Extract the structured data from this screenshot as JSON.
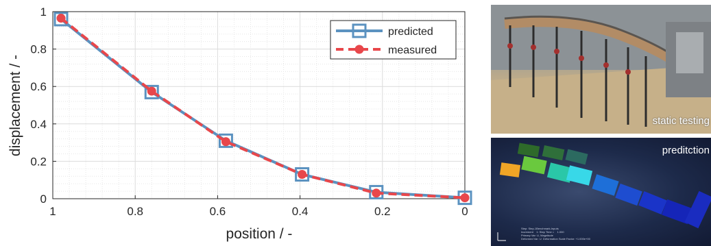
{
  "chart_data": {
    "type": "line",
    "xlabel": "position / -",
    "ylabel": "displacement / -",
    "xlim": [
      1,
      0
    ],
    "ylim": [
      0,
      1
    ],
    "x_reversed": true,
    "xticks": [
      "1",
      "0.8",
      "0.6",
      "0.4",
      "0.2",
      "0"
    ],
    "yticks": [
      "0",
      "0.2",
      "0.4",
      "0.6",
      "0.8",
      "1"
    ],
    "grid": true,
    "minor_grid": true,
    "legend_position": "top-right",
    "series": [
      {
        "name": "predicted",
        "color": "#5b92c0",
        "style": "solid",
        "marker": "square",
        "x": [
          0.98,
          0.76,
          0.58,
          0.395,
          0.215,
          0.0
        ],
        "y": [
          0.96,
          0.57,
          0.31,
          0.13,
          0.035,
          0.005
        ]
      },
      {
        "name": "measured",
        "color": "#e8474b",
        "style": "dashed",
        "marker": "circle",
        "x": [
          0.98,
          0.76,
          0.58,
          0.395,
          0.215,
          0.0
        ],
        "y": [
          0.965,
          0.575,
          0.305,
          0.13,
          0.03,
          0.005
        ]
      }
    ]
  },
  "photos": {
    "top_label": "static testing",
    "bottom_label": "preditction",
    "bottom_caption": "Step: Step-1Benchmark-Inputs\nIncrement    1: Step Time =    1.000\nPrimary Var: U, Magnitude\nDeformed Var: U  Deformation Scale Factor: +1.000e+00"
  }
}
